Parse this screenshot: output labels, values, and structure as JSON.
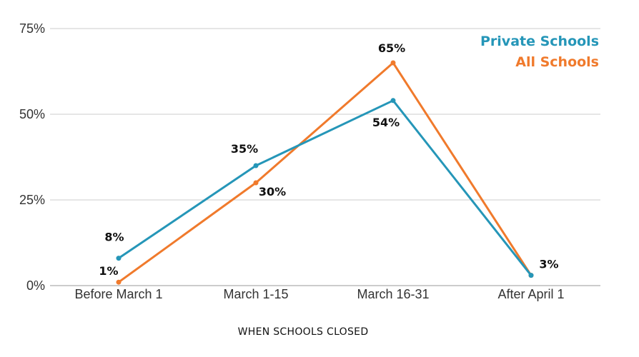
{
  "chart_data": {
    "type": "line",
    "categories": [
      "Before March 1",
      "March 1-15",
      "March 16-31",
      "After April 1"
    ],
    "xlabel": "WHEN SCHOOLS CLOSED",
    "ylabel": "",
    "ylim": [
      0,
      75
    ],
    "yticks": [
      0,
      25,
      50,
      75
    ],
    "ytick_labels": [
      "0%",
      "25%",
      "50%",
      "75%"
    ],
    "grid": true,
    "legend_position": "top-right",
    "series": [
      {
        "name": "Private Schools",
        "color": "#2596b8",
        "values": [
          8,
          35,
          54,
          3
        ],
        "labels": [
          "8%",
          "35%",
          "54%",
          "3%"
        ]
      },
      {
        "name": "All Schools",
        "color": "#f07a2c",
        "values": [
          1,
          30,
          65,
          3
        ],
        "labels": [
          "1%",
          "30%",
          "65%",
          ""
        ]
      }
    ]
  }
}
